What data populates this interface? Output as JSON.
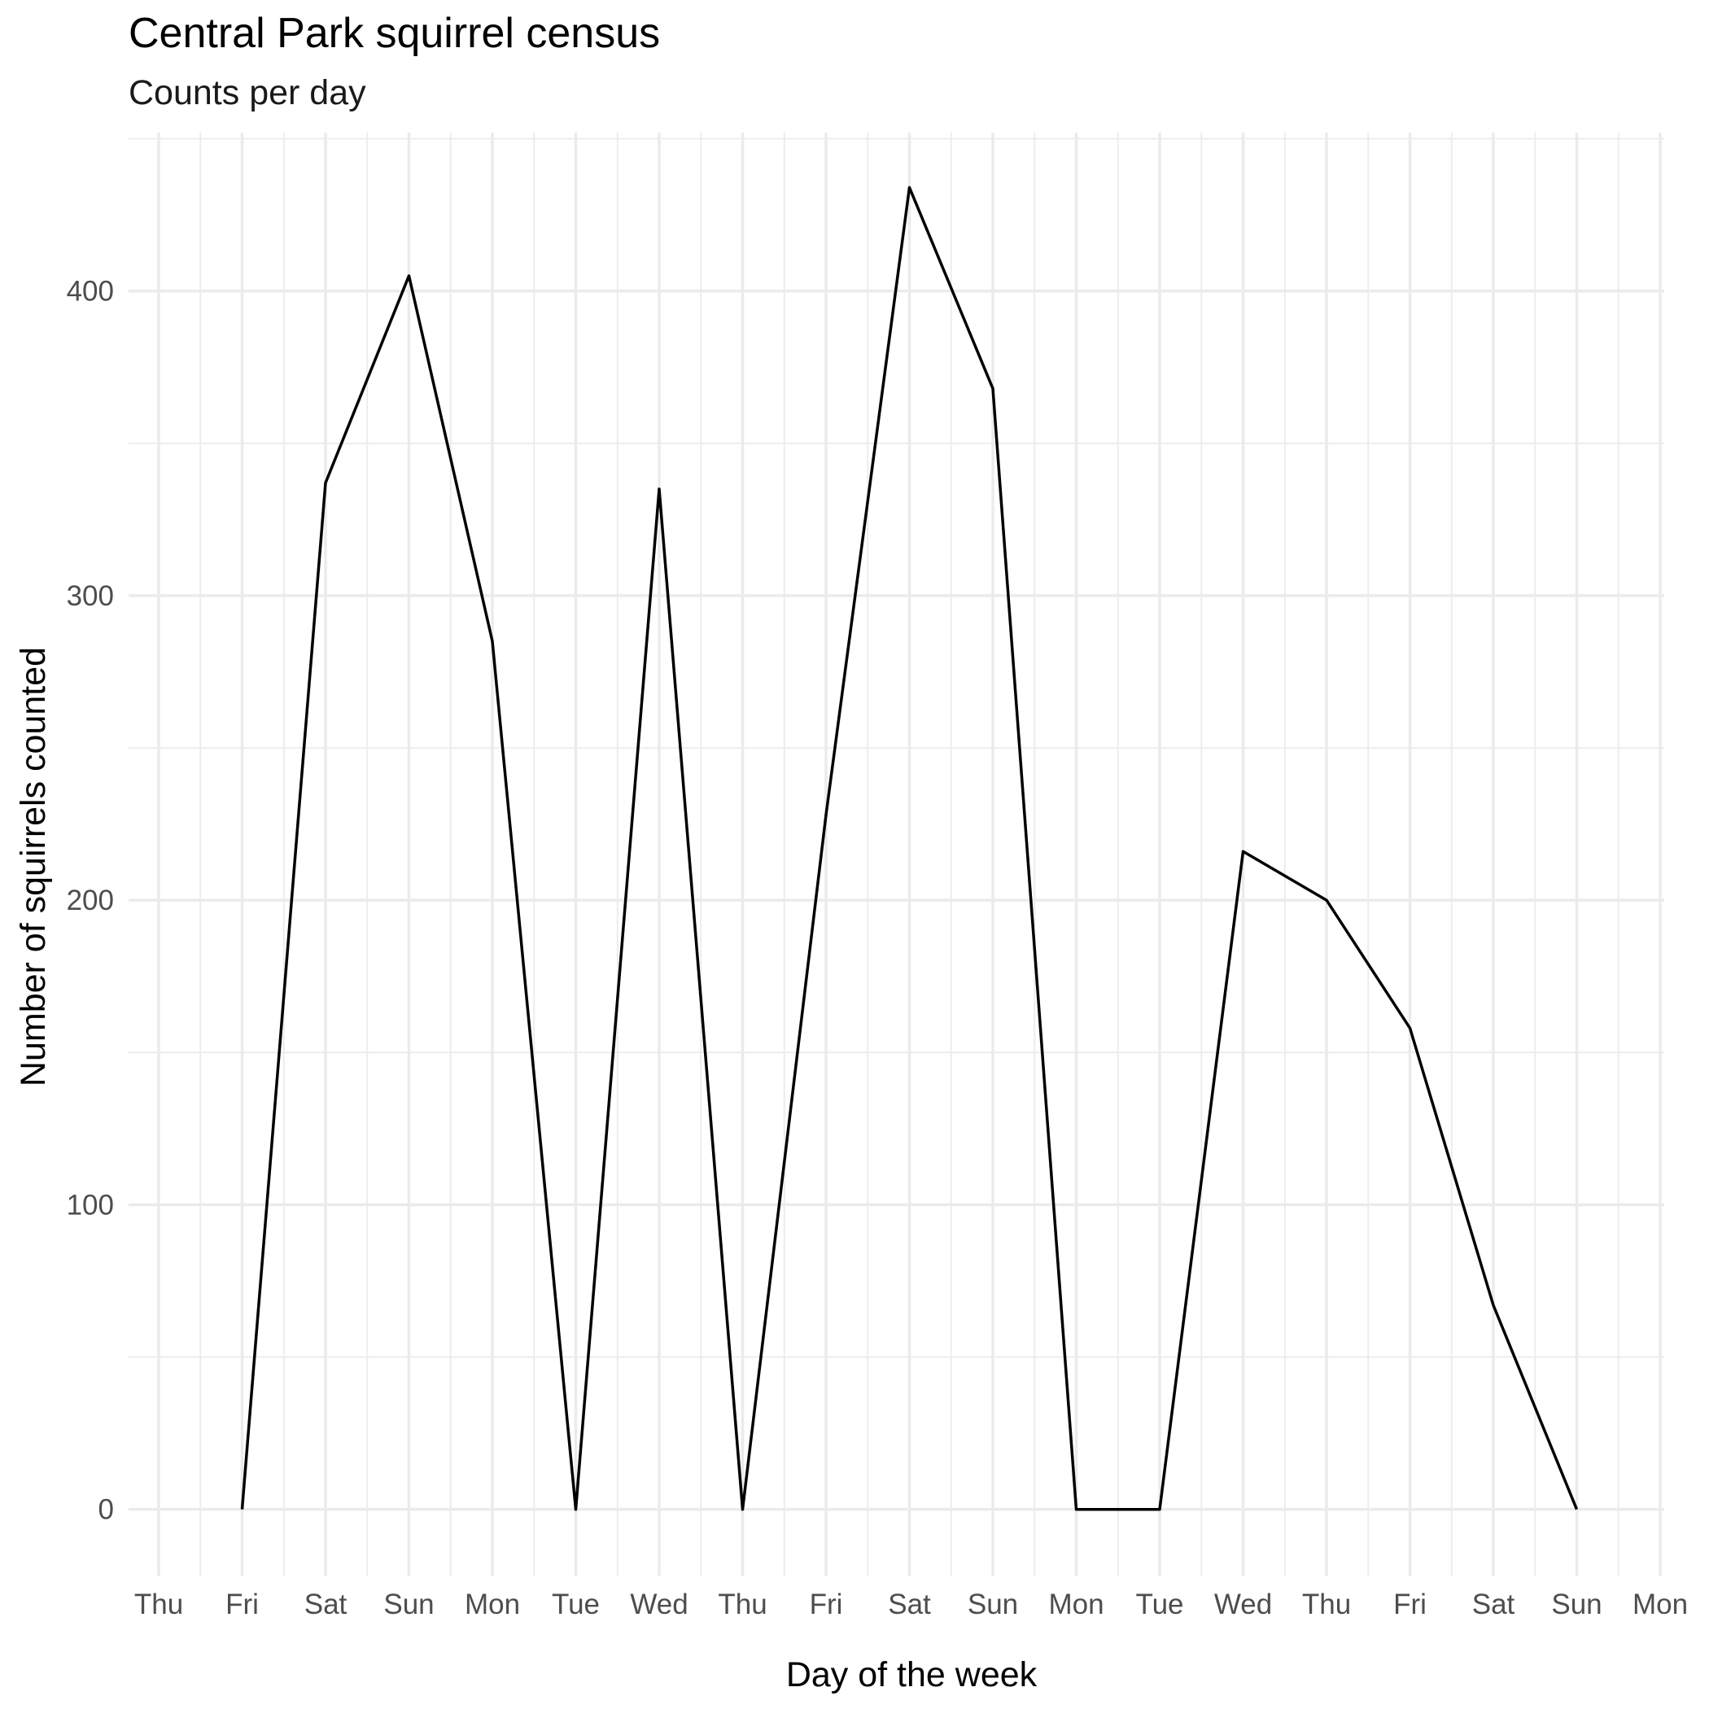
{
  "chart_data": {
    "type": "line",
    "title": "Central Park squirrel census",
    "subtitle": "Counts per day",
    "xlabel": "Day of the week",
    "ylabel": "Number of squirrels counted",
    "x_tick_labels": [
      "Thu",
      "Fri",
      "Sat",
      "Sun",
      "Mon",
      "Tue",
      "Wed",
      "Thu",
      "Fri",
      "Sat",
      "Sun",
      "Mon",
      "Tue",
      "Wed",
      "Thu",
      "Fri",
      "Sat",
      "Sun",
      "Mon"
    ],
    "y_ticks": [
      0,
      100,
      200,
      300,
      400
    ],
    "ylim": [
      -22,
      452
    ],
    "grid": true,
    "legend": "none",
    "series": [
      {
        "x": [
          "Fri",
          "Sat",
          "Sun",
          "Mon",
          "Tue",
          "Wed",
          "Thu",
          "Fri",
          "Sat",
          "Sun",
          "Mon",
          "Tue",
          "Wed",
          "Thu",
          "Fri",
          "Sat",
          "Sun"
        ],
        "values": [
          0,
          337,
          405,
          285,
          0,
          335,
          0,
          228,
          434,
          368,
          0,
          0,
          216,
          200,
          158,
          67,
          0
        ]
      }
    ]
  }
}
